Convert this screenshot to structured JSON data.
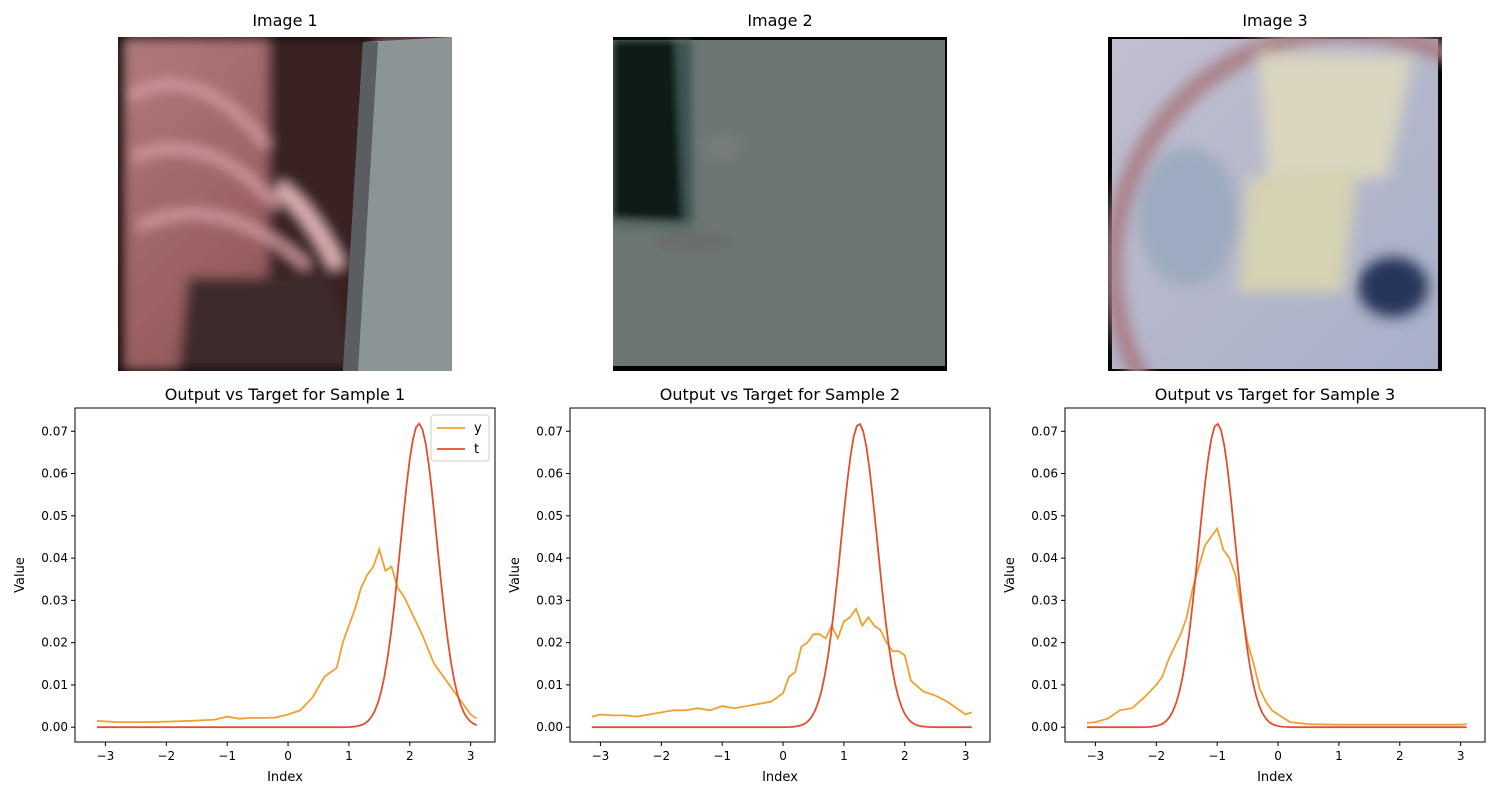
{
  "images": [
    {
      "title": "Image 1"
    },
    {
      "title": "Image 2"
    },
    {
      "title": "Image 3"
    }
  ],
  "colors": {
    "y": "#f0a030",
    "t": "#e05030"
  },
  "chart_data": [
    {
      "type": "line",
      "title": "Output vs Target for Sample 1",
      "xlabel": "Index",
      "ylabel": "Value",
      "xlim": [
        -3.5,
        3.4
      ],
      "ylim": [
        -0.0035,
        0.0755
      ],
      "xticks": [
        -3,
        -2,
        -1,
        0,
        1,
        2,
        3
      ],
      "yticks": [
        0.0,
        0.01,
        0.02,
        0.03,
        0.04,
        0.05,
        0.06,
        0.07
      ],
      "legend": "top-right",
      "series": [
        {
          "name": "y",
          "color": "#f0a030",
          "x": [
            -3.14,
            -2.8,
            -2.4,
            -2.0,
            -1.6,
            -1.2,
            -1.0,
            -0.8,
            -0.6,
            -0.4,
            -0.2,
            0.0,
            0.2,
            0.4,
            0.6,
            0.8,
            0.9,
            1.0,
            1.1,
            1.2,
            1.3,
            1.4,
            1.5,
            1.6,
            1.7,
            1.8,
            1.9,
            2.0,
            2.1,
            2.2,
            2.4,
            2.6,
            2.8,
            3.0,
            3.1
          ],
          "y": [
            0.0015,
            0.0012,
            0.0012,
            0.0013,
            0.0015,
            0.0018,
            0.0025,
            0.002,
            0.0022,
            0.0022,
            0.0023,
            0.003,
            0.004,
            0.007,
            0.012,
            0.014,
            0.02,
            0.024,
            0.028,
            0.033,
            0.036,
            0.038,
            0.042,
            0.037,
            0.038,
            0.033,
            0.031,
            0.028,
            0.025,
            0.022,
            0.015,
            0.011,
            0.007,
            0.003,
            0.002
          ]
        },
        {
          "name": "t",
          "color": "#e05030",
          "gaussian": {
            "mu": 2.15,
            "sigma": 0.3,
            "peak": 0.0718,
            "x0": -3.14,
            "x1": 3.1,
            "n": 120
          }
        }
      ]
    },
    {
      "type": "line",
      "title": "Output vs Target for Sample 2",
      "xlabel": "Index",
      "ylabel": "Value",
      "xlim": [
        -3.5,
        3.4
      ],
      "ylim": [
        -0.0035,
        0.0755
      ],
      "xticks": [
        -3,
        -2,
        -1,
        0,
        1,
        2,
        3
      ],
      "yticks": [
        0.0,
        0.01,
        0.02,
        0.03,
        0.04,
        0.05,
        0.06,
        0.07
      ],
      "series": [
        {
          "name": "y",
          "color": "#f0a030",
          "x": [
            -3.14,
            -3.0,
            -2.8,
            -2.6,
            -2.4,
            -2.2,
            -2.0,
            -1.8,
            -1.6,
            -1.4,
            -1.2,
            -1.0,
            -0.8,
            -0.6,
            -0.4,
            -0.2,
            0.0,
            0.1,
            0.2,
            0.3,
            0.4,
            0.5,
            0.6,
            0.7,
            0.8,
            0.9,
            1.0,
            1.1,
            1.2,
            1.3,
            1.4,
            1.5,
            1.6,
            1.7,
            1.8,
            1.9,
            2.0,
            2.1,
            2.3,
            2.5,
            2.7,
            2.9,
            3.0,
            3.1
          ],
          "y": [
            0.0025,
            0.003,
            0.0028,
            0.0028,
            0.0025,
            0.003,
            0.0035,
            0.004,
            0.004,
            0.0045,
            0.004,
            0.005,
            0.0045,
            0.005,
            0.0055,
            0.006,
            0.008,
            0.012,
            0.013,
            0.019,
            0.02,
            0.022,
            0.022,
            0.021,
            0.024,
            0.021,
            0.025,
            0.026,
            0.028,
            0.024,
            0.026,
            0.024,
            0.023,
            0.02,
            0.018,
            0.018,
            0.017,
            0.011,
            0.0085,
            0.0075,
            0.006,
            0.004,
            0.003,
            0.0035
          ]
        },
        {
          "name": "t",
          "color": "#e05030",
          "gaussian": {
            "mu": 1.25,
            "sigma": 0.3,
            "peak": 0.0718,
            "x0": -3.14,
            "x1": 3.1,
            "n": 120
          }
        }
      ]
    },
    {
      "type": "line",
      "title": "Output vs Target for Sample 3",
      "xlabel": "Index",
      "ylabel": "Value",
      "xlim": [
        -3.5,
        3.4
      ],
      "ylim": [
        -0.0035,
        0.0755
      ],
      "xticks": [
        -3,
        -2,
        -1,
        0,
        1,
        2,
        3
      ],
      "yticks": [
        0.0,
        0.01,
        0.02,
        0.03,
        0.04,
        0.05,
        0.06,
        0.07
      ],
      "series": [
        {
          "name": "y",
          "color": "#f0a030",
          "x": [
            -3.14,
            -3.0,
            -2.8,
            -2.6,
            -2.4,
            -2.2,
            -2.0,
            -1.9,
            -1.8,
            -1.7,
            -1.6,
            -1.5,
            -1.4,
            -1.3,
            -1.2,
            -1.1,
            -1.0,
            -0.9,
            -0.8,
            -0.7,
            -0.6,
            -0.5,
            -0.4,
            -0.3,
            -0.2,
            -0.1,
            0.0,
            0.2,
            0.5,
            1.0,
            1.5,
            2.0,
            2.5,
            3.0,
            3.1
          ],
          "y": [
            0.001,
            0.0012,
            0.002,
            0.004,
            0.0045,
            0.007,
            0.01,
            0.012,
            0.016,
            0.019,
            0.022,
            0.026,
            0.033,
            0.038,
            0.043,
            0.045,
            0.047,
            0.042,
            0.04,
            0.036,
            0.028,
            0.02,
            0.015,
            0.009,
            0.006,
            0.004,
            0.003,
            0.0012,
            0.0007,
            0.0006,
            0.0006,
            0.0006,
            0.0006,
            0.0006,
            0.0007
          ]
        },
        {
          "name": "t",
          "color": "#e05030",
          "gaussian": {
            "mu": -1.0,
            "sigma": 0.3,
            "peak": 0.0718,
            "x0": -3.14,
            "x1": 3.1,
            "n": 120
          }
        }
      ]
    }
  ]
}
